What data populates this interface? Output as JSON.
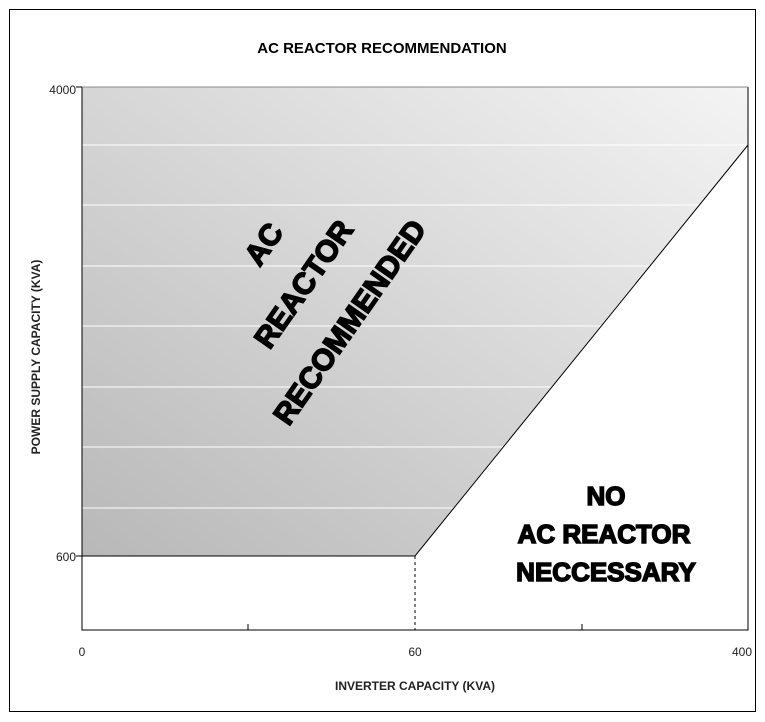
{
  "title": "AC REACTOR RECOMMENDATION",
  "x_axis": {
    "label": "INVERTER CAPACITY (KVA)",
    "ticks": [
      "0",
      "60",
      "400"
    ]
  },
  "y_axis": {
    "label": "POWER SUPPLY CAPACITY (KVA)",
    "ticks": [
      "600",
      "4000"
    ]
  },
  "regions": [
    {
      "lines": [
        "AC",
        "REACTOR",
        "RECOMMENDED"
      ]
    },
    {
      "lines": [
        "NO",
        "AC REACTOR",
        "NECCESSARY"
      ]
    }
  ]
}
